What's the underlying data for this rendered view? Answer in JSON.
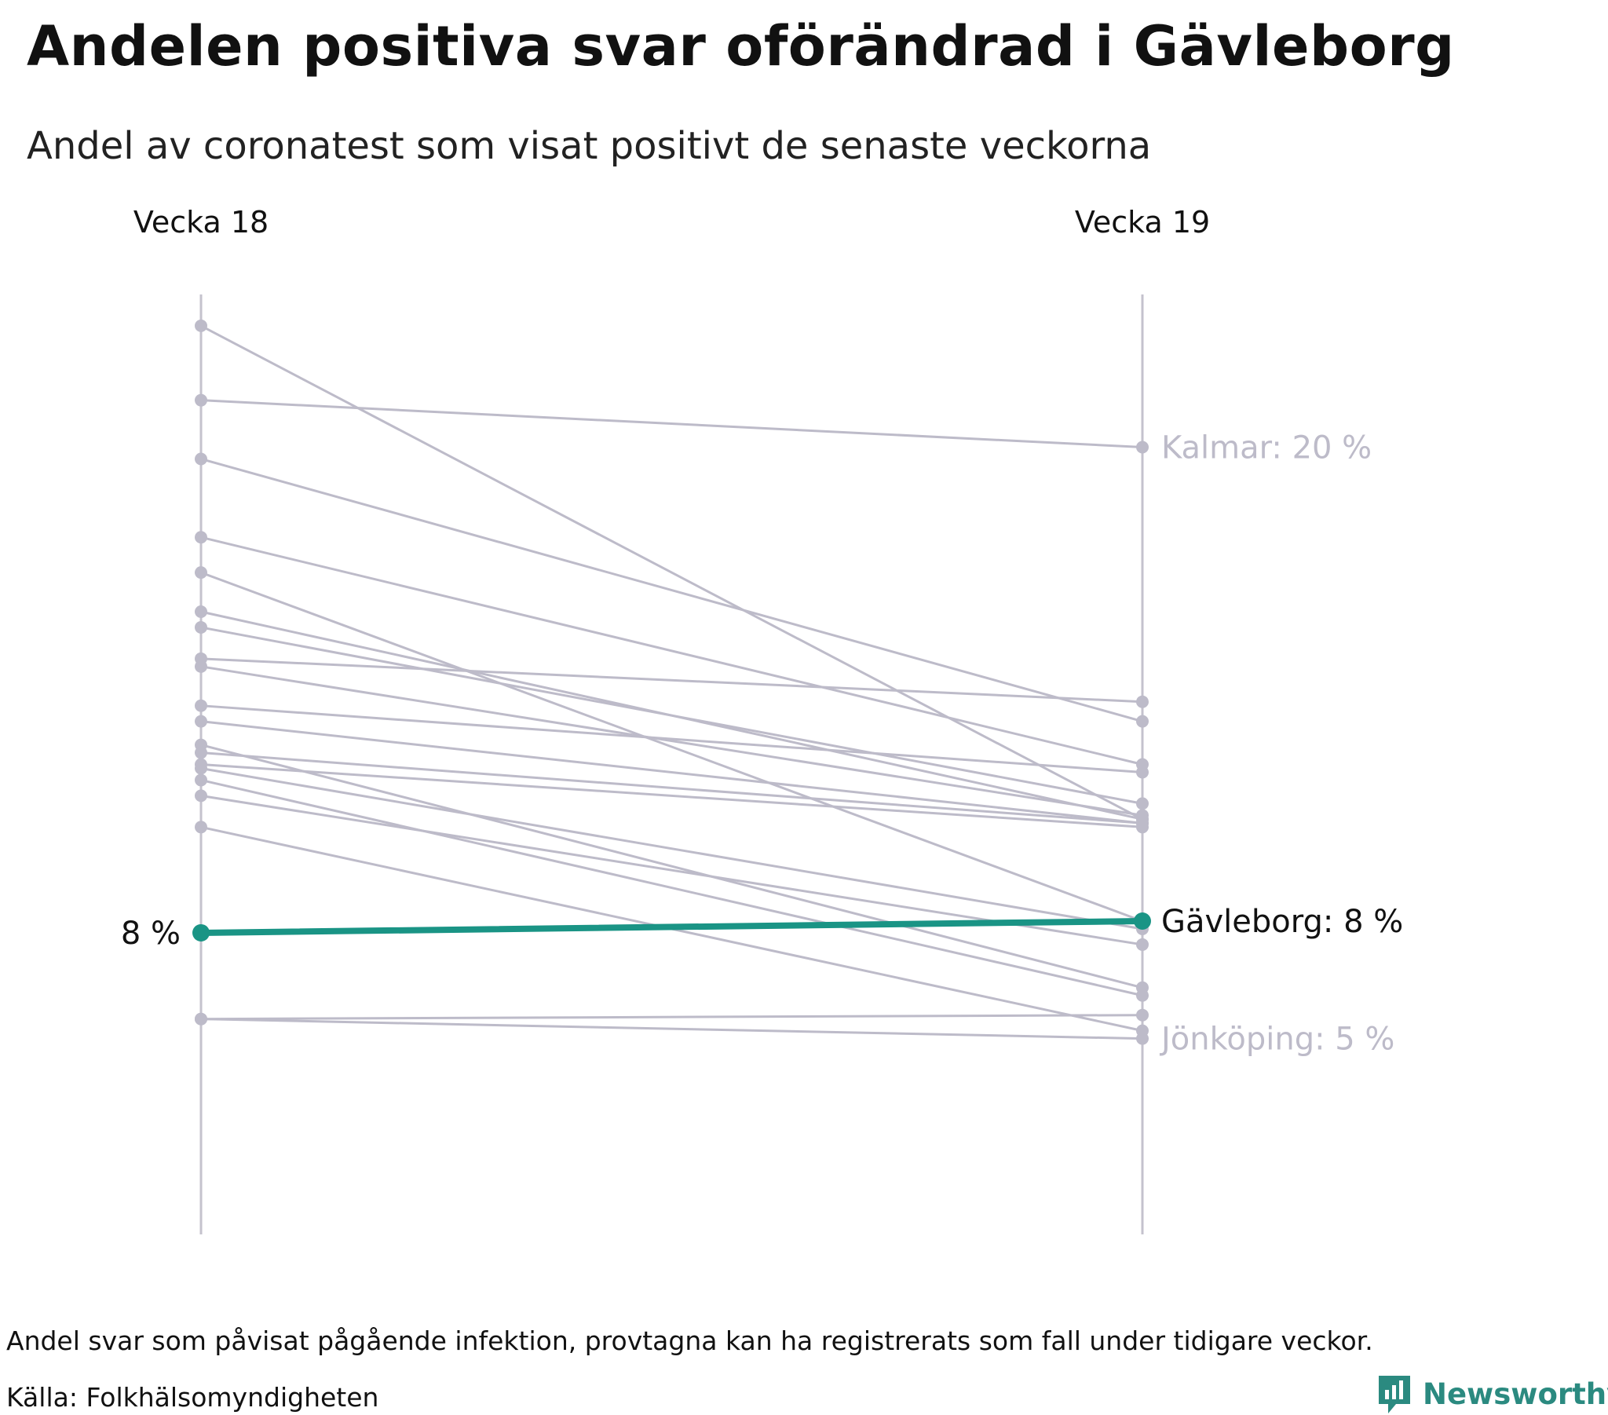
{
  "title": "Andelen positiva svar oförändrad i Gävleborg",
  "subtitle": "Andel av coronatest som visat positivt de senaste veckorna",
  "footer": {
    "note": "Andel svar som påvisat pågående infektion, provtagna kan ha registrerats som fall under tidigare veckor.",
    "source": "Källa: Folkhälsomyndigheten",
    "brand": "Newsworthy"
  },
  "colors": {
    "highlight": "#1a9485",
    "other": "#bdbbc9",
    "axis": "#c4c2cd",
    "text": "#111111"
  },
  "chart_data": {
    "type": "line",
    "x": [
      "Vecka 18",
      "Vecka 19"
    ],
    "ylim": [
      0,
      24
    ],
    "highlight": {
      "name": "Gävleborg",
      "values": [
        7.7,
        8.0
      ],
      "start_label": "8 %",
      "end_label": "Gävleborg: 8 %"
    },
    "labeled": [
      {
        "name": "Kalmar",
        "end_label": "Kalmar: 20 %"
      },
      {
        "name": "Jönköping",
        "end_label": "Jönköping: 5 %"
      }
    ],
    "series": [
      {
        "name": "Kalmar",
        "values": [
          21.3,
          20.1
        ]
      },
      {
        "name": "Jönköping",
        "values": [
          5.5,
          5.0
        ]
      },
      {
        "values": [
          23.2,
          10.6
        ]
      },
      {
        "values": [
          19.8,
          13.1
        ]
      },
      {
        "values": [
          17.8,
          12.0
        ]
      },
      {
        "values": [
          16.9,
          8.0
        ]
      },
      {
        "values": [
          15.9,
          10.6
        ]
      },
      {
        "values": [
          15.5,
          11.0
        ]
      },
      {
        "values": [
          14.7,
          13.6
        ]
      },
      {
        "values": [
          14.5,
          10.7
        ]
      },
      {
        "values": [
          13.5,
          11.8
        ]
      },
      {
        "values": [
          13.1,
          10.5
        ]
      },
      {
        "values": [
          12.5,
          6.3
        ]
      },
      {
        "values": [
          12.3,
          10.5
        ]
      },
      {
        "values": [
          12.0,
          10.4
        ]
      },
      {
        "values": [
          11.9,
          7.8
        ]
      },
      {
        "values": [
          11.6,
          6.1
        ]
      },
      {
        "values": [
          11.2,
          7.4
        ]
      },
      {
        "values": [
          10.4,
          5.2
        ]
      },
      {
        "values": [
          5.5,
          5.6
        ]
      }
    ]
  }
}
